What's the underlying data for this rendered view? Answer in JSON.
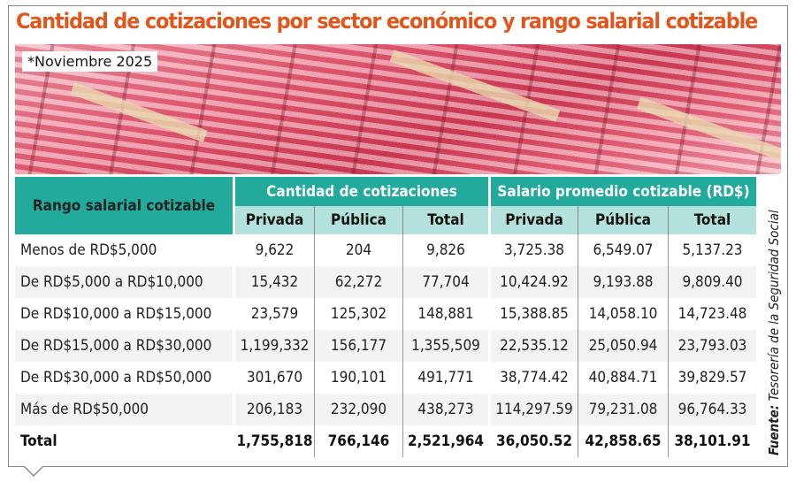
{
  "title": "Cantidad de cotizaciones por sector económico y rango salarial cotizable",
  "note": "*Noviembre 2025",
  "headers": {
    "range": "Rango salarial cotizable",
    "group1": "Cantidad de cotizaciones",
    "group2": "Salario promedio cotizable (RD$)",
    "sub": [
      "Privada",
      "Pública",
      "Total",
      "Privada",
      "Pública",
      "Total"
    ]
  },
  "rows": [
    {
      "label": "Menos de RD$5,000",
      "v": [
        "9,622",
        "204",
        "9,826",
        "3,725.38",
        "6,549.07",
        "5,137.23"
      ]
    },
    {
      "label": "De RD$5,000 a RD$10,000",
      "v": [
        "15,432",
        "62,272",
        "77,704",
        "10,424.92",
        "9,193.88",
        "9,809.40"
      ]
    },
    {
      "label": "De RD$10,000 a RD$15,000",
      "v": [
        "23,579",
        "125,302",
        "148,881",
        "15,388.85",
        "14,058.10",
        "14,723.48"
      ]
    },
    {
      "label": "De RD$15,000 a RD$30,000",
      "v": [
        "1,199,332",
        "156,177",
        "1,355,509",
        "22,535.12",
        "25,050.94",
        "23,793.03"
      ]
    },
    {
      "label": "De RD$30,000 a RD$50,000",
      "v": [
        "301,670",
        "190,101",
        "491,771",
        "38,774.42",
        "40,884.71",
        "39,829.57"
      ]
    },
    {
      "label": "Más de RD$50,000",
      "v": [
        "206,183",
        "232,090",
        "438,273",
        "114,297.59",
        "79,231.08",
        "96,764.33"
      ]
    },
    {
      "label": "Total",
      "v": [
        "1,755,818",
        "766,146",
        "2,521,964",
        "36,050.52",
        "42,858.65",
        "38,101.91"
      ]
    }
  ],
  "source": {
    "label": "Fuente:",
    "text": "Tesorería de la Seguridad Social"
  }
}
